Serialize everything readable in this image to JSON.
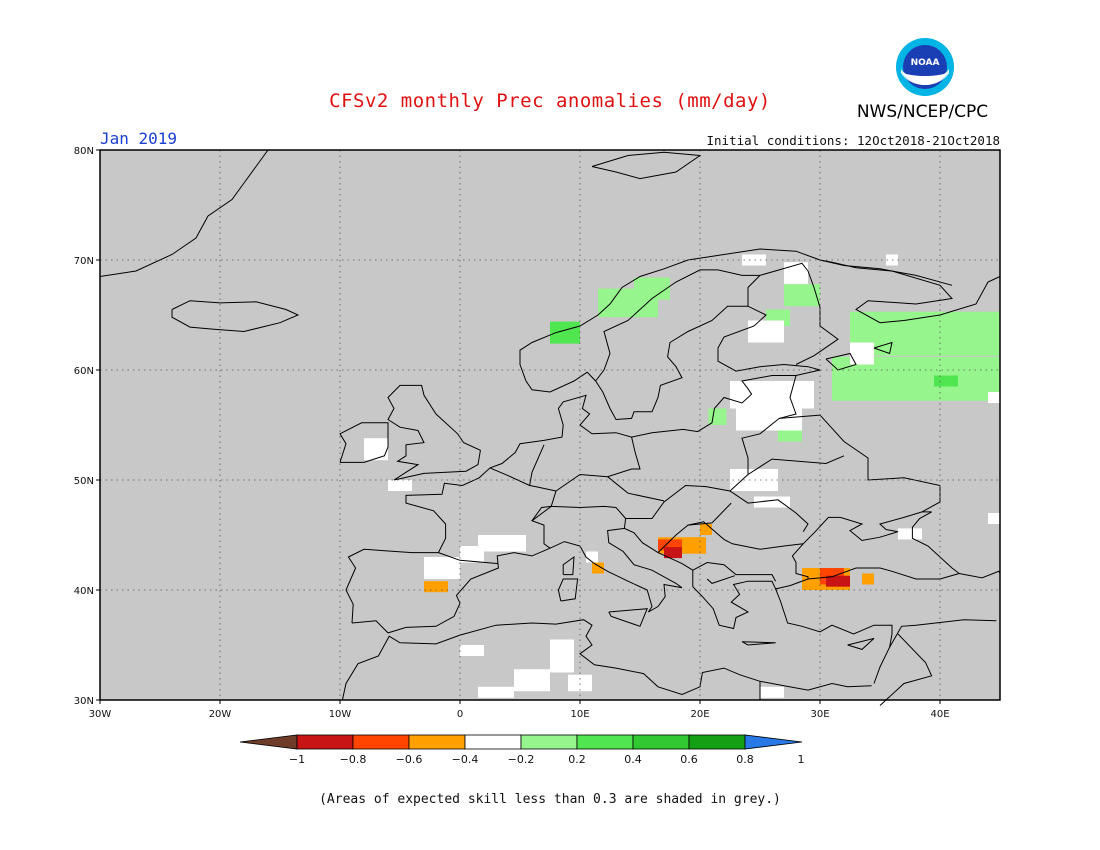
{
  "title": "CFSv2 monthly Prec anomalies (mm/day)",
  "agency": "NWS/NCEP/CPC",
  "logo_text": "NOAA",
  "month": "Jan 2019",
  "initial_conditions": "Initial conditions: 12Oct2018-21Oct2018",
  "footnote": "(Areas of expected skill less than 0.3 are shaded in grey.)",
  "colors": {
    "grey_skill": "#c8c8c8",
    "white": "#ffffff",
    "light_green": "#96f58c",
    "green": "#50e650",
    "orange": "#ffa000",
    "red_orange": "#ff4500",
    "dark_red": "#c81414",
    "brown": "#6e3c28",
    "blue": "#2878e6",
    "title_red": "#e01010",
    "month_blue": "#1a3fd0"
  },
  "map": {
    "lon_range": [
      -30,
      45
    ],
    "lat_range": [
      30,
      80
    ],
    "lat_labels": [
      {
        "lat": 80,
        "label": "80N"
      },
      {
        "lat": 70,
        "label": "70N"
      },
      {
        "lat": 60,
        "label": "60N"
      },
      {
        "lat": 50,
        "label": "50N"
      },
      {
        "lat": 40,
        "label": "40N"
      },
      {
        "lat": 30,
        "label": "30N"
      }
    ],
    "lon_labels": [
      {
        "lon": -30,
        "label": "30W"
      },
      {
        "lon": -20,
        "label": "20W"
      },
      {
        "lon": -10,
        "label": "10W"
      },
      {
        "lon": 0,
        "label": "0"
      },
      {
        "lon": 10,
        "label": "10E"
      },
      {
        "lon": 20,
        "label": "20E"
      },
      {
        "lon": 30,
        "label": "30E"
      },
      {
        "lon": 40,
        "label": "40E"
      }
    ],
    "anomaly_cells": [
      {
        "lon": 7.5,
        "lat": 62.4,
        "w": 2.5,
        "h": 2.0,
        "cls": "green"
      },
      {
        "lon": 11.5,
        "lat": 64.8,
        "w": 5.0,
        "h": 2.6,
        "cls": "light_green"
      },
      {
        "lon": 14.5,
        "lat": 66.4,
        "w": 3.0,
        "h": 2.0,
        "cls": "light_green"
      },
      {
        "lon": 23.5,
        "lat": 69.5,
        "w": 2.0,
        "h": 1.0,
        "cls": "white"
      },
      {
        "lon": 27.0,
        "lat": 67.8,
        "w": 2.0,
        "h": 2.0,
        "cls": "white"
      },
      {
        "lon": 27.0,
        "lat": 65.8,
        "w": 3.0,
        "h": 2.0,
        "cls": "light_green"
      },
      {
        "lon": 25.5,
        "lat": 64.0,
        "w": 2.0,
        "h": 1.5,
        "cls": "light_green"
      },
      {
        "lon": 32.5,
        "lat": 61.3,
        "w": 12.5,
        "h": 4.0,
        "cls": "light_green"
      },
      {
        "lon": 31.0,
        "lat": 57.2,
        "w": 14.0,
        "h": 4.0,
        "cls": "light_green"
      },
      {
        "lon": 32.5,
        "lat": 60.5,
        "w": 2.0,
        "h": 2.0,
        "cls": "white"
      },
      {
        "lon": 24.0,
        "lat": 62.5,
        "w": 3.0,
        "h": 2.0,
        "cls": "white"
      },
      {
        "lon": 35.5,
        "lat": 69.5,
        "w": 1.0,
        "h": 1.0,
        "cls": "white"
      },
      {
        "lon": 22.5,
        "lat": 56.5,
        "w": 7.0,
        "h": 2.5,
        "cls": "white"
      },
      {
        "lon": 23.0,
        "lat": 54.5,
        "w": 5.5,
        "h": 2.0,
        "cls": "white"
      },
      {
        "lon": 26.5,
        "lat": 53.5,
        "w": 2.0,
        "h": 1.0,
        "cls": "light_green"
      },
      {
        "lon": 20.7,
        "lat": 55.0,
        "w": 1.5,
        "h": 1.5,
        "cls": "light_green"
      },
      {
        "lon": 39.5,
        "lat": 58.5,
        "w": 2.0,
        "h": 1.0,
        "cls": "green"
      },
      {
        "lon": 44.0,
        "lat": 57.0,
        "w": 1.5,
        "h": 1.0,
        "cls": "white"
      },
      {
        "lon": 22.5,
        "lat": 49.0,
        "w": 4.0,
        "h": 2.0,
        "cls": "white"
      },
      {
        "lon": 24.5,
        "lat": 47.5,
        "w": 3.0,
        "h": 1.0,
        "cls": "white"
      },
      {
        "lon": 44.0,
        "lat": 46.0,
        "w": 1.5,
        "h": 1.0,
        "cls": "white"
      },
      {
        "lon": 36.5,
        "lat": 44.6,
        "w": 2.0,
        "h": 1.0,
        "cls": "white"
      },
      {
        "lon": -8.0,
        "lat": 51.8,
        "w": 2.0,
        "h": 2.0,
        "cls": "white"
      },
      {
        "lon": -6.0,
        "lat": 49.0,
        "w": 2.0,
        "h": 1.0,
        "cls": "white"
      },
      {
        "lon": 1.5,
        "lat": 43.5,
        "w": 4.0,
        "h": 1.5,
        "cls": "white"
      },
      {
        "lon": -3.0,
        "lat": 41.0,
        "w": 3.0,
        "h": 2.0,
        "cls": "white"
      },
      {
        "lon": 0.0,
        "lat": 42.5,
        "w": 2.0,
        "h": 1.5,
        "cls": "white"
      },
      {
        "lon": 10.5,
        "lat": 42.5,
        "w": 1.0,
        "h": 1.0,
        "cls": "white"
      },
      {
        "lon": 11.0,
        "lat": 41.5,
        "w": 1.0,
        "h": 1.0,
        "cls": "orange"
      },
      {
        "lon": -3.0,
        "lat": 39.8,
        "w": 2.0,
        "h": 1.0,
        "cls": "orange"
      },
      {
        "lon": 16.5,
        "lat": 43.3,
        "w": 4.0,
        "h": 1.5,
        "cls": "orange"
      },
      {
        "lon": 16.5,
        "lat": 43.6,
        "w": 2.0,
        "h": 1.0,
        "cls": "red_orange"
      },
      {
        "lon": 17.0,
        "lat": 42.9,
        "w": 1.5,
        "h": 1.0,
        "cls": "dark_red"
      },
      {
        "lon": 20.0,
        "lat": 45.0,
        "w": 1.0,
        "h": 1.0,
        "cls": "orange"
      },
      {
        "lon": 28.5,
        "lat": 40.0,
        "w": 4.0,
        "h": 2.0,
        "cls": "orange"
      },
      {
        "lon": 30.0,
        "lat": 40.5,
        "w": 2.0,
        "h": 1.5,
        "cls": "red_orange"
      },
      {
        "lon": 30.5,
        "lat": 40.3,
        "w": 2.0,
        "h": 1.0,
        "cls": "dark_red"
      },
      {
        "lon": 33.5,
        "lat": 40.5,
        "w": 1.0,
        "h": 1.0,
        "cls": "orange"
      },
      {
        "lon": 0.0,
        "lat": 34.0,
        "w": 2.0,
        "h": 1.0,
        "cls": "white"
      },
      {
        "lon": 1.5,
        "lat": 30.2,
        "w": 3.0,
        "h": 1.0,
        "cls": "white"
      },
      {
        "lon": 4.5,
        "lat": 30.8,
        "w": 3.0,
        "h": 2.0,
        "cls": "white"
      },
      {
        "lon": 7.5,
        "lat": 32.5,
        "w": 2.0,
        "h": 3.0,
        "cls": "white"
      },
      {
        "lon": 9.0,
        "lat": 30.8,
        "w": 2.0,
        "h": 1.5,
        "cls": "white"
      },
      {
        "lon": 25.0,
        "lat": 30.2,
        "w": 2.0,
        "h": 1.0,
        "cls": "white"
      }
    ]
  },
  "colorbar": {
    "segments": [
      {
        "color": "#c81414"
      },
      {
        "color": "#ff4500"
      },
      {
        "color": "#ffa000"
      },
      {
        "color": "#ffffff"
      },
      {
        "color": "#96f58c"
      },
      {
        "color": "#50e650"
      },
      {
        "color": "#32c832"
      },
      {
        "color": "#14a014"
      }
    ],
    "left_arrow_color": "#6e3c28",
    "right_arrow_color": "#2878e6",
    "labels": [
      "−1",
      "−0.8",
      "−0.6",
      "−0.4",
      "−0.2",
      "0.2",
      "0.4",
      "0.6",
      "0.8",
      "1"
    ]
  }
}
